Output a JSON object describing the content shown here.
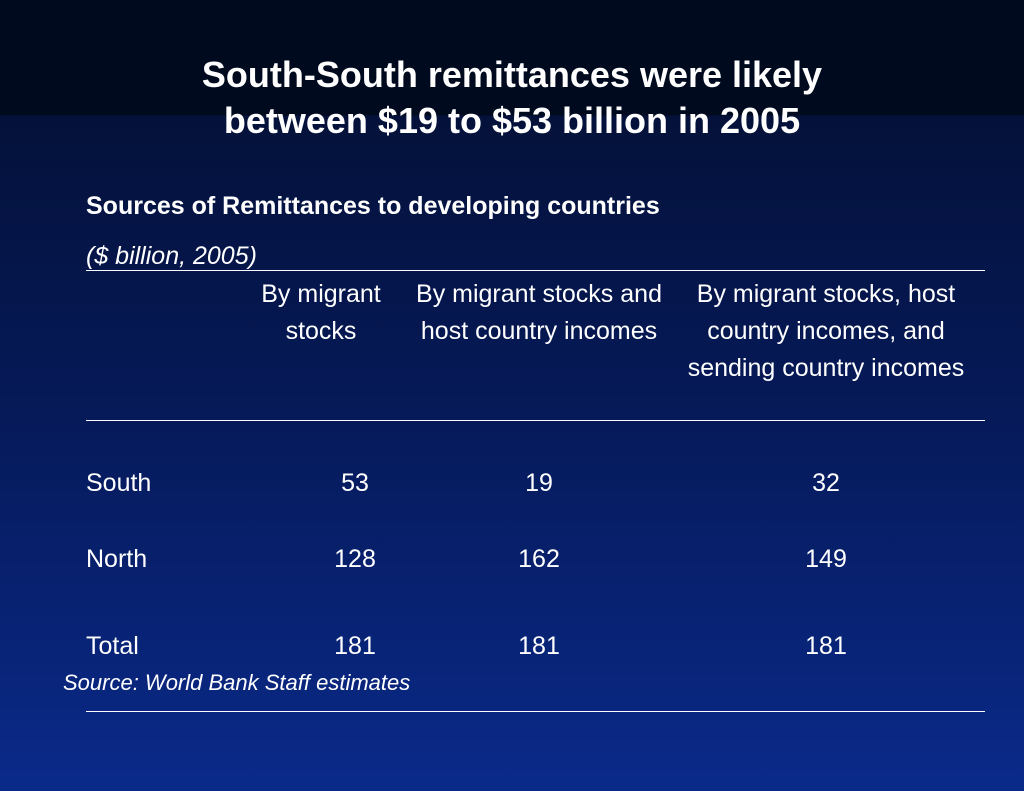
{
  "slide": {
    "title_line1": "South-South remittances were likely",
    "title_line2": "between $19 to $53 billion in 2005"
  },
  "chart_data": {
    "type": "table",
    "title": "Sources of Remittances to developing countries",
    "units": "($ billion, 2005)",
    "columns": [
      "By migrant stocks",
      "By migrant stocks and host country incomes",
      "By migrant stocks, host country incomes, and sending country incomes"
    ],
    "rows": [
      {
        "label": "South",
        "values": [
          53,
          19,
          32
        ]
      },
      {
        "label": "North",
        "values": [
          128,
          162,
          149
        ]
      },
      {
        "label": "Total",
        "values": [
          181,
          181,
          181
        ]
      }
    ],
    "source": "Source: World Bank Staff estimates"
  },
  "colors": {
    "background_top": "#000a1e",
    "background_bottom": "#0a2a8a",
    "text": "#ffffff"
  }
}
